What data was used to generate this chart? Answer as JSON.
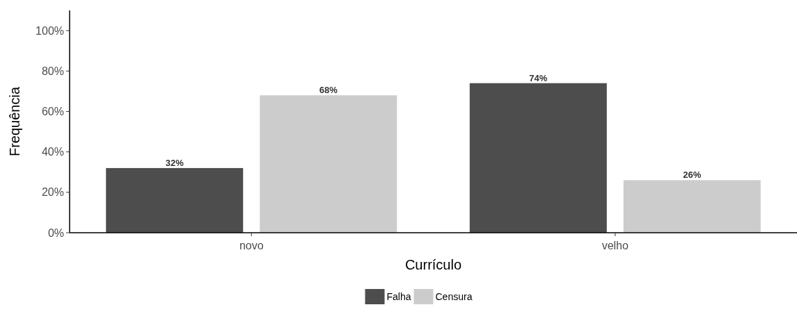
{
  "chart_data": {
    "type": "bar",
    "xlabel": "Currículo",
    "ylabel": "Frequência",
    "categories": [
      "novo",
      "velho"
    ],
    "series": [
      {
        "name": "Falha",
        "color": "#4d4d4d",
        "values": [
          32,
          74
        ],
        "value_labels": [
          "32%",
          "74%"
        ]
      },
      {
        "name": "Censura",
        "color": "#cccccc",
        "values": [
          68,
          26
        ],
        "value_labels": [
          "68%",
          "26%"
        ]
      }
    ],
    "ylim": [
      0,
      110
    ],
    "yticks": [
      {
        "value": 0,
        "label": "0%"
      },
      {
        "value": 20,
        "label": "20%"
      },
      {
        "value": 40,
        "label": "40%"
      },
      {
        "value": 60,
        "label": "60%"
      },
      {
        "value": 80,
        "label": "80%"
      },
      {
        "value": 100,
        "label": "100%"
      }
    ],
    "grid": false,
    "legend": "bottom"
  }
}
